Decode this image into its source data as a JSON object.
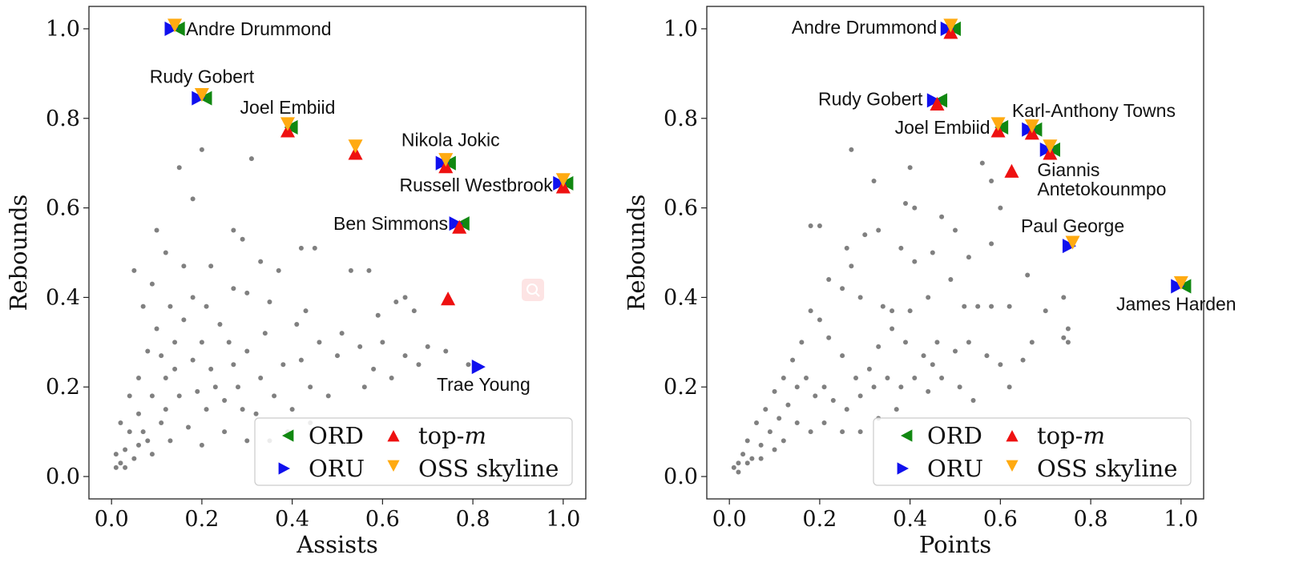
{
  "colors": {
    "gray_points": "#808080",
    "ord": "#118811",
    "oru": "#1010ee",
    "topm": "#ee1111",
    "oss": "#ffaa11",
    "axis": "#222222",
    "legend_border": "#cccccc",
    "search_badge": "#fde4e4"
  },
  "icons": {
    "search_badge": "magnifier-icon"
  },
  "legend": {
    "ord": "ORD",
    "oru": "ORU",
    "topm_prefix": "top-",
    "topm_italic": "m",
    "oss": "OSS skyline"
  },
  "chart_data": [
    {
      "type": "scatter",
      "title": "",
      "xlabel": "Assists",
      "ylabel": "Rebounds",
      "xlim": [
        -0.05,
        1.05
      ],
      "ylim": [
        -0.05,
        1.05
      ],
      "xticks": [
        "0.0",
        "0.2",
        "0.4",
        "0.6",
        "0.8",
        "1.0"
      ],
      "yticks": [
        "0.0",
        "0.2",
        "0.4",
        "0.6",
        "0.8",
        "1.0"
      ],
      "grid": false,
      "legend_position": "lower-right",
      "background_points": [
        [
          0.15,
          0.69
        ],
        [
          0.18,
          0.62
        ],
        [
          0.2,
          0.73
        ],
        [
          0.31,
          0.71
        ],
        [
          0.1,
          0.55
        ],
        [
          0.12,
          0.5
        ],
        [
          0.05,
          0.46
        ],
        [
          0.09,
          0.43
        ],
        [
          0.16,
          0.47
        ],
        [
          0.18,
          0.4
        ],
        [
          0.22,
          0.47
        ],
        [
          0.27,
          0.55
        ],
        [
          0.29,
          0.53
        ],
        [
          0.33,
          0.48
        ],
        [
          0.37,
          0.46
        ],
        [
          0.42,
          0.51
        ],
        [
          0.45,
          0.51
        ],
        [
          0.53,
          0.46
        ],
        [
          0.57,
          0.46
        ],
        [
          0.63,
          0.39
        ],
        [
          0.65,
          0.4
        ],
        [
          0.67,
          0.37
        ],
        [
          0.59,
          0.36
        ],
        [
          0.43,
          0.37
        ],
        [
          0.35,
          0.39
        ],
        [
          0.3,
          0.41
        ],
        [
          0.27,
          0.42
        ],
        [
          0.21,
          0.38
        ],
        [
          0.24,
          0.34
        ],
        [
          0.26,
          0.3
        ],
        [
          0.3,
          0.28
        ],
        [
          0.34,
          0.32
        ],
        [
          0.38,
          0.25
        ],
        [
          0.42,
          0.26
        ],
        [
          0.46,
          0.3
        ],
        [
          0.5,
          0.27
        ],
        [
          0.55,
          0.29
        ],
        [
          0.6,
          0.3
        ],
        [
          0.65,
          0.27
        ],
        [
          0.7,
          0.29
        ],
        [
          0.74,
          0.28
        ],
        [
          0.79,
          0.25
        ],
        [
          0.62,
          0.22
        ],
        [
          0.56,
          0.2
        ],
        [
          0.48,
          0.18
        ],
        [
          0.44,
          0.2
        ],
        [
          0.4,
          0.15
        ],
        [
          0.36,
          0.18
        ],
        [
          0.32,
          0.14
        ],
        [
          0.28,
          0.2
        ],
        [
          0.25,
          0.1
        ],
        [
          0.21,
          0.15
        ],
        [
          0.18,
          0.26
        ],
        [
          0.14,
          0.3
        ],
        [
          0.1,
          0.33
        ],
        [
          0.07,
          0.38
        ],
        [
          0.08,
          0.28
        ],
        [
          0.06,
          0.22
        ],
        [
          0.12,
          0.22
        ],
        [
          0.15,
          0.18
        ],
        [
          0.09,
          0.18
        ],
        [
          0.11,
          0.12
        ],
        [
          0.06,
          0.14
        ],
        [
          0.04,
          0.1
        ],
        [
          0.03,
          0.06
        ],
        [
          0.02,
          0.03
        ],
        [
          0.01,
          0.02
        ],
        [
          0.05,
          0.04
        ],
        [
          0.08,
          0.08
        ],
        [
          0.13,
          0.08
        ],
        [
          0.17,
          0.11
        ],
        [
          0.2,
          0.07
        ],
        [
          0.23,
          0.2
        ],
        [
          0.27,
          0.25
        ],
        [
          0.33,
          0.22
        ],
        [
          0.39,
          0.1
        ],
        [
          0.35,
          0.08
        ],
        [
          0.3,
          0.08
        ],
        [
          0.2,
          0.3
        ],
        [
          0.16,
          0.35
        ],
        [
          0.13,
          0.38
        ],
        [
          0.11,
          0.27
        ],
        [
          0.04,
          0.18
        ],
        [
          0.02,
          0.12
        ],
        [
          0.07,
          0.1
        ],
        [
          0.09,
          0.05
        ],
        [
          0.12,
          0.15
        ],
        [
          0.19,
          0.19
        ],
        [
          0.22,
          0.24
        ],
        [
          0.25,
          0.17
        ],
        [
          0.29,
          0.15
        ],
        [
          0.41,
          0.34
        ],
        [
          0.51,
          0.32
        ],
        [
          0.58,
          0.24
        ],
        [
          0.44,
          0.12
        ],
        [
          0.68,
          0.25
        ],
        [
          0.03,
          0.02
        ],
        [
          0.01,
          0.05
        ],
        [
          0.06,
          0.07
        ],
        [
          0.14,
          0.24
        ]
      ],
      "marked_points": [
        {
          "label": "Andre Drummond",
          "x": 0.14,
          "y": 1.0,
          "ord": true,
          "oru": true,
          "topm": false,
          "oss": true
        },
        {
          "label": "Rudy Gobert",
          "x": 0.2,
          "y": 0.845,
          "ord": true,
          "oru": true,
          "topm": false,
          "oss": true
        },
        {
          "label": "Joel Embiid",
          "x": 0.39,
          "y": 0.78,
          "ord": true,
          "oru": false,
          "topm": true,
          "oss": true
        },
        {
          "label": "",
          "x": 0.54,
          "y": 0.73,
          "ord": false,
          "oru": false,
          "topm": true,
          "oss": true
        },
        {
          "label": "Nikola Jokic",
          "x": 0.74,
          "y": 0.7,
          "ord": true,
          "oru": true,
          "topm": true,
          "oss": true
        },
        {
          "label": "Russell Westbrook",
          "x": 1.0,
          "y": 0.655,
          "ord": true,
          "oru": true,
          "topm": true,
          "oss": true
        },
        {
          "label": "Ben Simmons",
          "x": 0.77,
          "y": 0.565,
          "ord": true,
          "oru": true,
          "topm": true,
          "oss": false
        },
        {
          "label": "",
          "x": 0.745,
          "y": 0.405,
          "ord": false,
          "oru": false,
          "topm": true,
          "oss": false
        },
        {
          "label": "Trae Young",
          "x": 0.82,
          "y": 0.245,
          "ord": false,
          "oru": true,
          "topm": false,
          "oss": false
        }
      ]
    },
    {
      "type": "scatter",
      "title": "",
      "xlabel": "Points",
      "ylabel": "Rebounds",
      "xlim": [
        -0.05,
        1.05
      ],
      "ylim": [
        -0.05,
        1.05
      ],
      "xticks": [
        "0.0",
        "0.2",
        "0.4",
        "0.6",
        "0.8",
        "1.0"
      ],
      "yticks": [
        "0.0",
        "0.2",
        "0.4",
        "0.6",
        "0.8",
        "1.0"
      ],
      "grid": false,
      "legend_position": "lower-right",
      "background_points": [
        [
          0.27,
          0.73
        ],
        [
          0.4,
          0.69
        ],
        [
          0.56,
          0.7
        ],
        [
          0.58,
          0.66
        ],
        [
          0.6,
          0.6
        ],
        [
          0.32,
          0.66
        ],
        [
          0.39,
          0.61
        ],
        [
          0.41,
          0.6
        ],
        [
          0.47,
          0.58
        ],
        [
          0.5,
          0.55
        ],
        [
          0.58,
          0.52
        ],
        [
          0.53,
          0.49
        ],
        [
          0.45,
          0.5
        ],
        [
          0.41,
          0.48
        ],
        [
          0.38,
          0.51
        ],
        [
          0.33,
          0.55
        ],
        [
          0.3,
          0.54
        ],
        [
          0.26,
          0.51
        ],
        [
          0.2,
          0.56
        ],
        [
          0.18,
          0.56
        ],
        [
          0.27,
          0.47
        ],
        [
          0.22,
          0.44
        ],
        [
          0.25,
          0.42
        ],
        [
          0.29,
          0.4
        ],
        [
          0.34,
          0.38
        ],
        [
          0.36,
          0.37
        ],
        [
          0.4,
          0.37
        ],
        [
          0.44,
          0.4
        ],
        [
          0.49,
          0.44
        ],
        [
          0.52,
          0.38
        ],
        [
          0.55,
          0.38
        ],
        [
          0.58,
          0.38
        ],
        [
          0.62,
          0.38
        ],
        [
          0.66,
          0.45
        ],
        [
          0.7,
          0.37
        ],
        [
          0.74,
          0.4
        ],
        [
          0.75,
          0.33
        ],
        [
          0.75,
          0.3
        ],
        [
          0.74,
          0.31
        ],
        [
          0.67,
          0.3
        ],
        [
          0.65,
          0.26
        ],
        [
          0.6,
          0.25
        ],
        [
          0.57,
          0.27
        ],
        [
          0.53,
          0.3
        ],
        [
          0.5,
          0.28
        ],
        [
          0.46,
          0.3
        ],
        [
          0.43,
          0.27
        ],
        [
          0.39,
          0.3
        ],
        [
          0.36,
          0.33
        ],
        [
          0.33,
          0.29
        ],
        [
          0.31,
          0.24
        ],
        [
          0.28,
          0.22
        ],
        [
          0.25,
          0.27
        ],
        [
          0.22,
          0.31
        ],
        [
          0.2,
          0.35
        ],
        [
          0.18,
          0.37
        ],
        [
          0.16,
          0.3
        ],
        [
          0.14,
          0.26
        ],
        [
          0.12,
          0.22
        ],
        [
          0.1,
          0.19
        ],
        [
          0.08,
          0.15
        ],
        [
          0.06,
          0.12
        ],
        [
          0.04,
          0.08
        ],
        [
          0.03,
          0.05
        ],
        [
          0.02,
          0.03
        ],
        [
          0.01,
          0.02
        ],
        [
          0.05,
          0.04
        ],
        [
          0.07,
          0.07
        ],
        [
          0.09,
          0.1
        ],
        [
          0.11,
          0.13
        ],
        [
          0.13,
          0.16
        ],
        [
          0.15,
          0.2
        ],
        [
          0.17,
          0.22
        ],
        [
          0.19,
          0.18
        ],
        [
          0.21,
          0.2
        ],
        [
          0.23,
          0.17
        ],
        [
          0.26,
          0.15
        ],
        [
          0.29,
          0.18
        ],
        [
          0.32,
          0.2
        ],
        [
          0.35,
          0.22
        ],
        [
          0.38,
          0.2
        ],
        [
          0.41,
          0.22
        ],
        [
          0.44,
          0.19
        ],
        [
          0.47,
          0.22
        ],
        [
          0.51,
          0.2
        ],
        [
          0.54,
          0.17
        ],
        [
          0.37,
          0.15
        ],
        [
          0.33,
          0.13
        ],
        [
          0.29,
          0.1
        ],
        [
          0.25,
          0.1
        ],
        [
          0.21,
          0.12
        ],
        [
          0.18,
          0.1
        ],
        [
          0.15,
          0.12
        ],
        [
          0.12,
          0.08
        ],
        [
          0.1,
          0.06
        ],
        [
          0.07,
          0.04
        ],
        [
          0.04,
          0.03
        ],
        [
          0.02,
          0.01
        ],
        [
          0.45,
          0.25
        ],
        [
          0.62,
          0.2
        ]
      ],
      "marked_points": [
        {
          "label": "Andre Drummond",
          "x": 0.49,
          "y": 1.0,
          "ord": true,
          "oru": true,
          "topm": true,
          "oss": true
        },
        {
          "label": "Rudy Gobert",
          "x": 0.46,
          "y": 0.84,
          "ord": true,
          "oru": true,
          "topm": true,
          "oss": false
        },
        {
          "label": "Joel Embiid",
          "x": 0.595,
          "y": 0.78,
          "ord": true,
          "oru": false,
          "topm": true,
          "oss": true
        },
        {
          "label": "Karl-Anthony Towns",
          "x": 0.67,
          "y": 0.775,
          "ord": true,
          "oru": true,
          "topm": true,
          "oss": true
        },
        {
          "label": "Giannis Antetokounmpo",
          "x": 0.71,
          "y": 0.73,
          "ord": true,
          "oru": true,
          "topm": true,
          "oss": true
        },
        {
          "label": "",
          "x": 0.625,
          "y": 0.69,
          "ord": false,
          "oru": false,
          "topm": true,
          "oss": false
        },
        {
          "label": "Paul George",
          "x": 0.76,
          "y": 0.515,
          "ord": false,
          "oru": true,
          "topm": false,
          "oss": true
        },
        {
          "label": "James Harden",
          "x": 1.0,
          "y": 0.425,
          "ord": true,
          "oru": true,
          "topm": false,
          "oss": true
        }
      ]
    }
  ]
}
